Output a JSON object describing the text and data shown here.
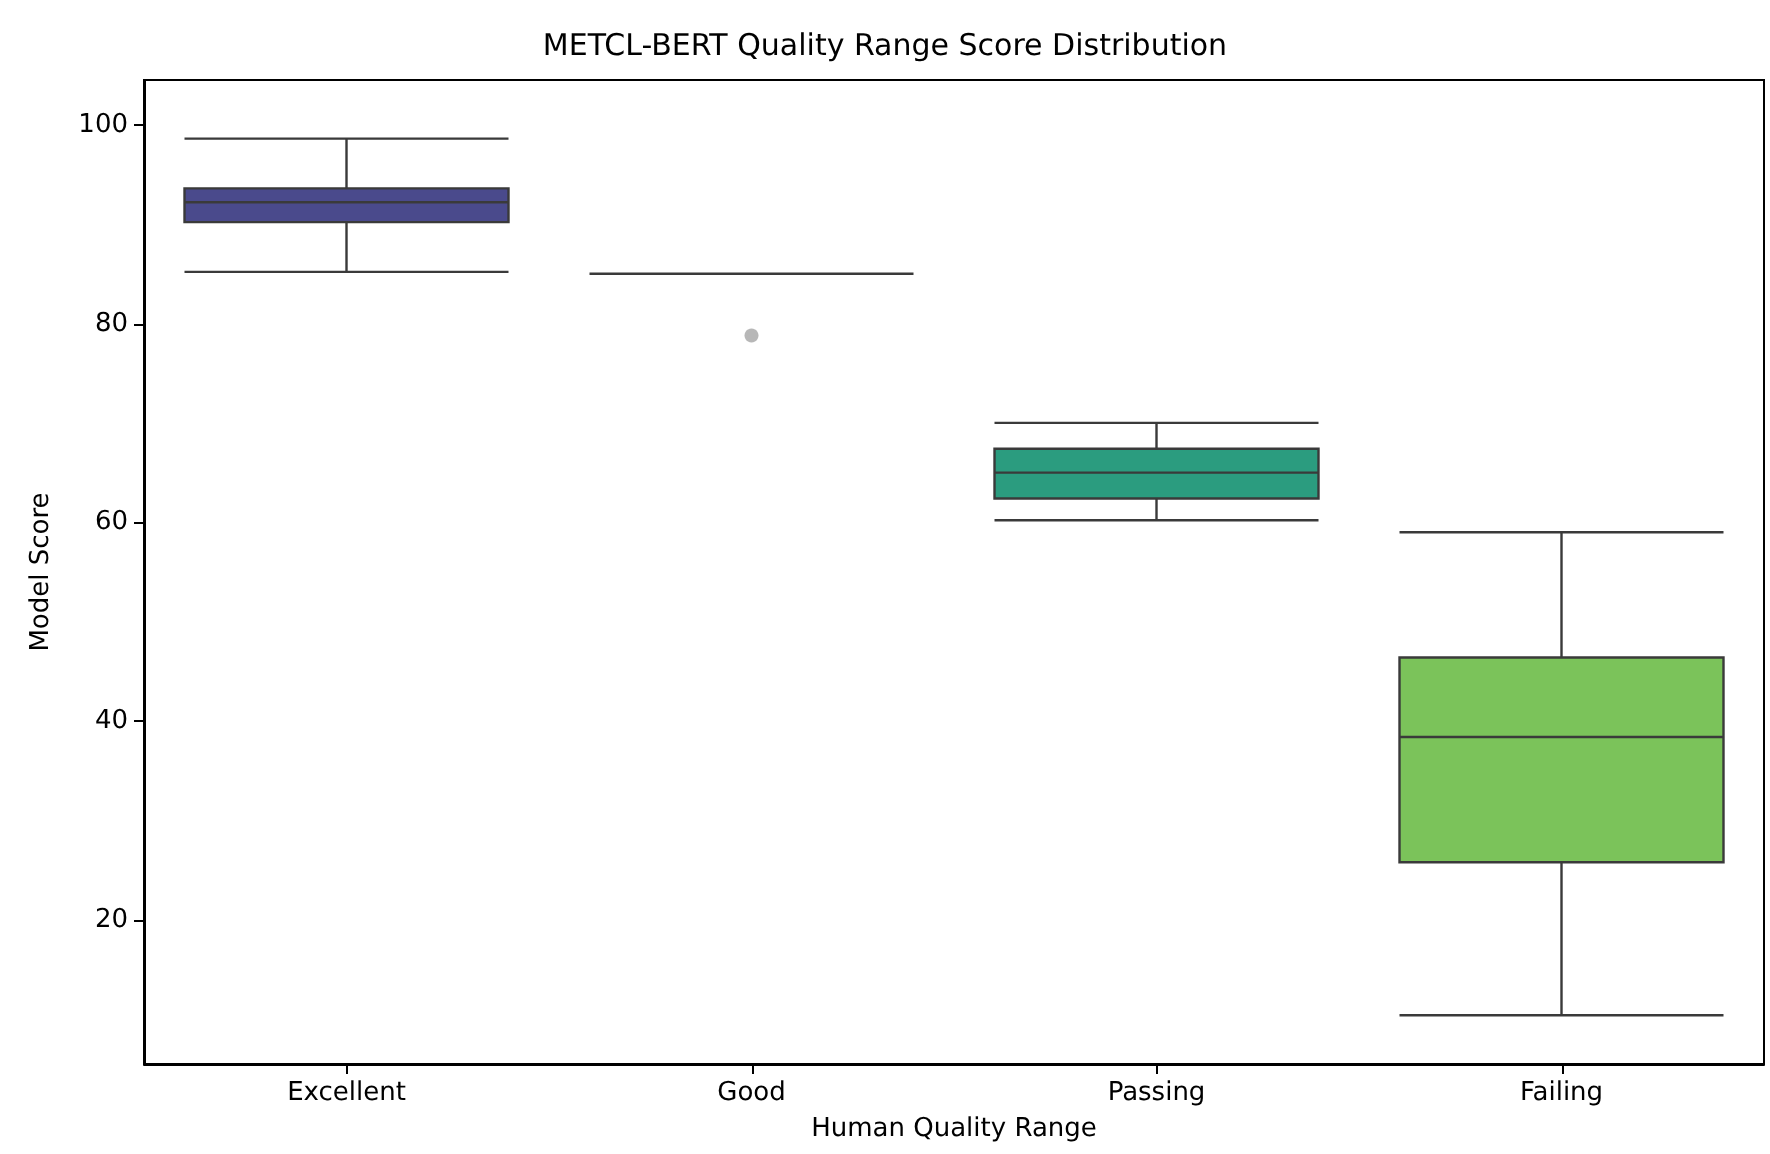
{
  "chart_data": {
    "type": "box",
    "title": "METCL-BERT Quality Range Score Distribution",
    "xlabel": "Human Quality Range",
    "ylabel": "Model Score",
    "categories": [
      "Excellent",
      "Good",
      "Passing",
      "Failing"
    ],
    "colors": [
      "#4a4a8c",
      null,
      "#2b9c7f",
      "#7bc35a"
    ],
    "boxes": [
      {
        "low": 85.2,
        "q1": 90.2,
        "median": 92.2,
        "q3": 93.6,
        "high": 98.6
      },
      {
        "low": 85,
        "q1": 85,
        "median": 85,
        "q3": 85,
        "high": 85,
        "outliers": [
          78.8
        ]
      },
      {
        "low": 60.2,
        "q1": 62.4,
        "median": 65,
        "q3": 67.4,
        "high": 70
      },
      {
        "low": 10.4,
        "q1": 25.8,
        "median": 38.4,
        "q3": 46.4,
        "high": 59
      }
    ],
    "ylim": [
      5.5,
      104.5
    ],
    "yticks": [
      20,
      40,
      60,
      80,
      100
    ],
    "grid": false
  }
}
